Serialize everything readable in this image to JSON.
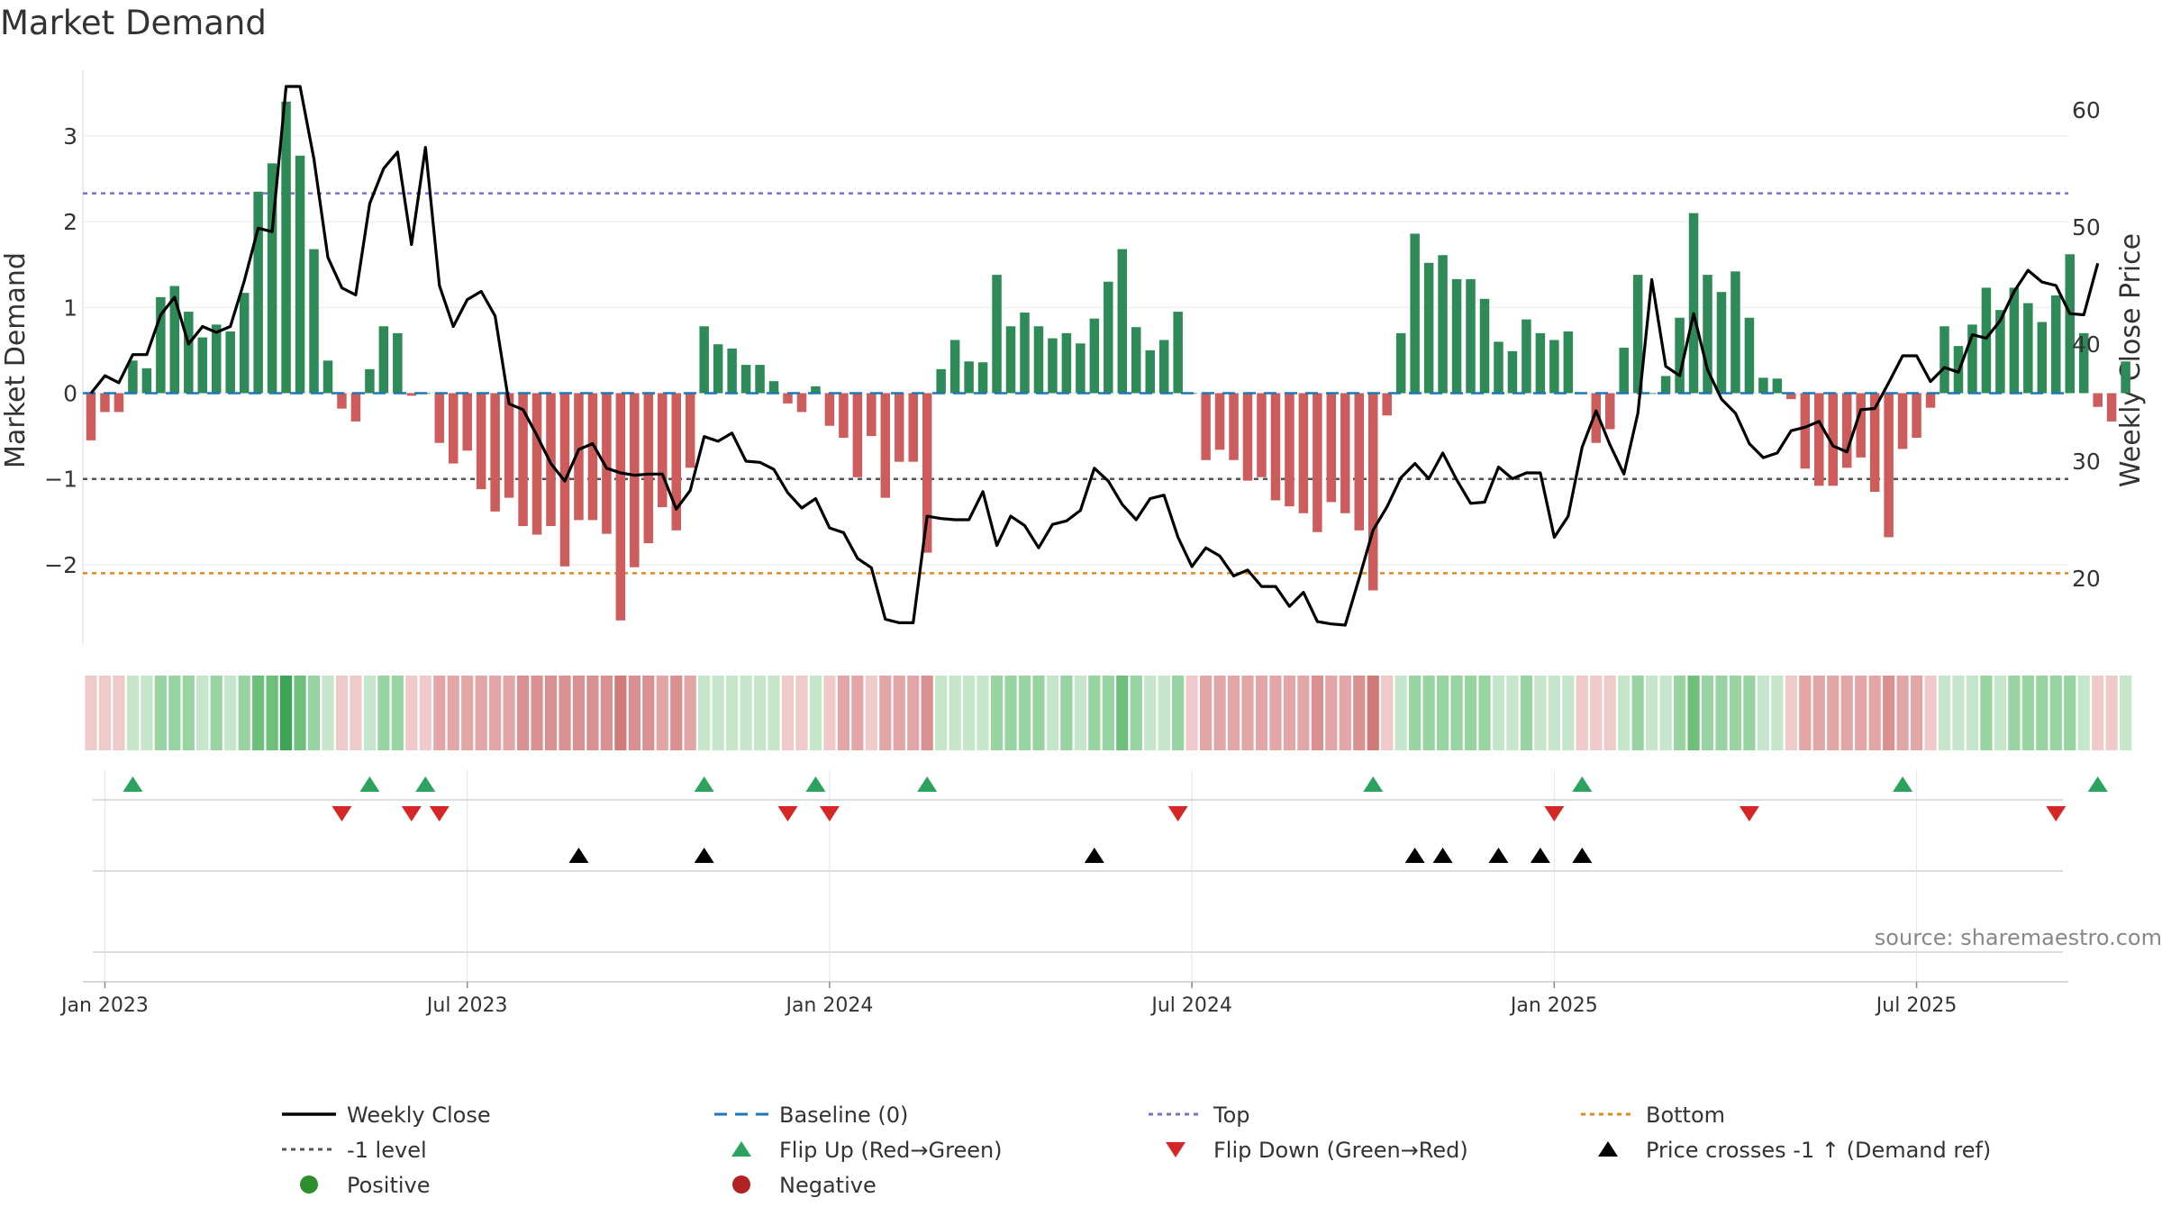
{
  "chart_data": {
    "type": "bar+line",
    "title": "Market Demand",
    "ylabel_left": "Market Demand",
    "ylabel_right": "Weekly Close Price",
    "ylim_left": [
      -2.95,
      3.75
    ],
    "ylim_right": [
      14,
      64
    ],
    "yticks_left": [
      3,
      2,
      1,
      0,
      -1,
      -2
    ],
    "ytick_labels_left": [
      "3",
      "2",
      "1",
      "0",
      "−1",
      "−2"
    ],
    "yticks_right": [
      60,
      50,
      40,
      30,
      20
    ],
    "ytick_labels_right": [
      "60",
      "50",
      "40",
      "30",
      "20"
    ],
    "xtick_labels": [
      "Jan 2023",
      "Jul 2023",
      "Jan 2024",
      "Jul 2024",
      "Jan 2025",
      "Jul 2025"
    ],
    "xtick_positions": [
      1,
      27,
      53,
      79,
      105,
      131
    ],
    "num_weeks": 146,
    "reference_lines": {
      "top": 2.33,
      "minus_one": -1.0,
      "bottom": -2.1,
      "baseline": 0
    },
    "demand": [
      -0.55,
      -0.22,
      -0.22,
      0.38,
      0.29,
      1.12,
      1.25,
      0.95,
      0.65,
      0.8,
      0.72,
      1.17,
      2.35,
      2.68,
      3.4,
      2.77,
      1.68,
      0.38,
      -0.18,
      -0.33,
      0.28,
      0.78,
      0.7,
      -0.03,
      0.0,
      -0.58,
      -0.82,
      -0.67,
      -1.12,
      -1.38,
      -1.22,
      -1.55,
      -1.65,
      -1.55,
      -2.02,
      -1.48,
      -1.48,
      -1.64,
      -2.65,
      -2.03,
      -1.75,
      -1.33,
      -1.6,
      -0.87,
      0.78,
      0.57,
      0.52,
      0.33,
      0.33,
      0.14,
      -0.12,
      -0.22,
      0.08,
      -0.38,
      -0.52,
      -0.98,
      -0.5,
      -1.22,
      -0.8,
      -0.8,
      -1.86,
      0.28,
      0.62,
      0.37,
      0.36,
      1.38,
      0.78,
      0.94,
      0.78,
      0.64,
      0.7,
      0.58,
      0.87,
      1.3,
      1.68,
      0.77,
      0.5,
      0.62,
      0.95,
      0.0,
      -0.78,
      -0.66,
      -0.78,
      -1.02,
      -0.98,
      -1.25,
      -1.32,
      -1.4,
      -1.62,
      -1.27,
      -1.4,
      -1.6,
      -2.3,
      -0.26,
      0.7,
      1.86,
      1.52,
      1.61,
      1.33,
      1.33,
      1.1,
      0.6,
      0.49,
      0.86,
      0.7,
      0.62,
      0.72,
      0.0,
      -0.58,
      -0.42,
      0.53,
      1.38,
      0.0,
      0.2,
      0.88,
      2.1,
      1.38,
      1.18,
      1.42,
      0.88,
      0.18,
      0.17,
      -0.07,
      -0.88,
      -1.08,
      -1.08,
      -0.87,
      -0.75,
      -1.15,
      -1.68,
      -0.65,
      -0.52,
      -0.17,
      0.78,
      0.55,
      0.8,
      1.23,
      0.97,
      1.23,
      1.05,
      0.83,
      1.14,
      1.62,
      0.7,
      -0.16,
      -0.33,
      0.37
    ],
    "close": [
      35.8,
      37.3,
      36.7,
      39.1,
      39.1,
      42.5,
      44.0,
      40.0,
      41.5,
      41.0,
      41.5,
      45.4,
      49.9,
      49.6,
      62.0,
      62.0,
      55.8,
      47.4,
      44.8,
      44.2,
      52.0,
      55.0,
      56.4,
      48.5,
      56.8,
      45.0,
      41.5,
      43.8,
      44.5,
      42.4,
      34.9,
      34.4,
      32.2,
      29.8,
      28.3,
      31.0,
      31.5,
      29.4,
      29.0,
      28.8,
      28.9,
      28.9,
      25.9,
      27.5,
      32.1,
      31.7,
      32.4,
      30.0,
      29.9,
      29.3,
      27.3,
      26.0,
      26.8,
      24.3,
      23.9,
      21.7,
      20.9,
      16.5,
      16.2,
      16.2,
      25.3,
      25.1,
      25.0,
      25.0,
      27.4,
      22.8,
      25.3,
      24.5,
      22.6,
      24.6,
      24.9,
      25.8,
      29.4,
      28.3,
      26.3,
      25.0,
      26.8,
      27.1,
      23.5,
      21.0,
      22.6,
      21.9,
      20.2,
      20.7,
      19.3,
      19.3,
      17.6,
      18.8,
      16.3,
      16.1,
      16.0,
      20.0,
      24.1,
      26.1,
      28.6,
      29.8,
      28.5,
      30.7,
      28.4,
      26.4,
      26.5,
      29.5,
      28.5,
      29.0,
      29.0,
      23.5,
      25.3,
      31.2,
      34.3,
      31.4,
      28.9,
      34.1,
      45.5,
      38.1,
      37.3,
      42.6,
      37.8,
      35.3,
      34.1,
      31.5,
      30.3,
      30.7,
      32.6,
      32.9,
      33.4,
      31.3,
      30.8,
      34.4,
      34.5,
      36.7,
      39.0,
      39.0,
      36.8,
      38.0,
      37.6,
      40.8,
      40.5,
      42.0,
      44.5,
      46.3,
      45.3,
      45.0,
      42.6,
      42.5,
      46.9
    ],
    "color_strip": [
      -1,
      -1,
      -1,
      1,
      1,
      2,
      2,
      2,
      1,
      2,
      1,
      2,
      3,
      3,
      4,
      3,
      2,
      1,
      -1,
      -1,
      1,
      2,
      2,
      -1,
      -1,
      -2,
      -2,
      -2,
      -2,
      -2,
      -2,
      -3,
      -3,
      -3,
      -3,
      -3,
      -3,
      -3,
      -4,
      -3,
      -3,
      -2,
      -3,
      -2,
      1,
      1,
      1,
      1,
      1,
      1,
      -1,
      -1,
      1,
      -1,
      -2,
      -2,
      -1,
      -2,
      -2,
      -2,
      -3,
      1,
      1,
      1,
      1,
      2,
      2,
      2,
      2,
      1,
      2,
      1,
      2,
      2,
      3,
      2,
      1,
      1,
      2,
      -1,
      -2,
      -2,
      -2,
      -2,
      -2,
      -2,
      -2,
      -2,
      -3,
      -2,
      -2,
      -3,
      -4,
      -1,
      1,
      2,
      2,
      2,
      2,
      2,
      2,
      1,
      1,
      2,
      1,
      1,
      1,
      -1,
      -1,
      -1,
      1,
      2,
      1,
      1,
      2,
      3,
      2,
      2,
      2,
      2,
      1,
      1,
      -1,
      -2,
      -2,
      -2,
      -2,
      -2,
      -2,
      -3,
      -2,
      -2,
      -1,
      1,
      1,
      1,
      2,
      1,
      2,
      2,
      2,
      2,
      2,
      1,
      -1,
      -1,
      1
    ],
    "flip_up_weeks": [
      3,
      20,
      24,
      44,
      52,
      60,
      92,
      107,
      130,
      144
    ],
    "flip_down_weeks": [
      18,
      23,
      25,
      50,
      53,
      78,
      105,
      119,
      141
    ],
    "price_cross_weeks": [
      35,
      44,
      72,
      95,
      97,
      101,
      104,
      107
    ],
    "source": "source: sharemaestro.com",
    "legend": [
      {
        "label": "Weekly Close",
        "symbol": "line-solid",
        "color": "#000000"
      },
      {
        "label": "Baseline (0)",
        "symbol": "line-dashed",
        "color": "#1f77b4"
      },
      {
        "label": "Top",
        "symbol": "line-dotted",
        "color": "#7b6fc9"
      },
      {
        "label": "Bottom",
        "symbol": "line-dotted",
        "color": "#e08a1e"
      },
      {
        "label": "-1 level",
        "symbol": "line-dotted",
        "color": "#555555"
      },
      {
        "label": "Flip Up (Red→Green)",
        "symbol": "triangle-up",
        "color": "#2ca25f"
      },
      {
        "label": "Flip Down (Green→Red)",
        "symbol": "triangle-down",
        "color": "#d62728"
      },
      {
        "label": "Price crosses -1 ↑ (Demand ref)",
        "symbol": "triangle-up",
        "color": "#000000"
      },
      {
        "label": "Positive",
        "symbol": "circle",
        "color": "#2c8f2c"
      },
      {
        "label": "Negative",
        "symbol": "circle",
        "color": "#b22222"
      }
    ]
  },
  "colors": {
    "positive_bar": "#2e8b57",
    "negative_bar": "#cd5c5c",
    "grid": "#ececec"
  }
}
